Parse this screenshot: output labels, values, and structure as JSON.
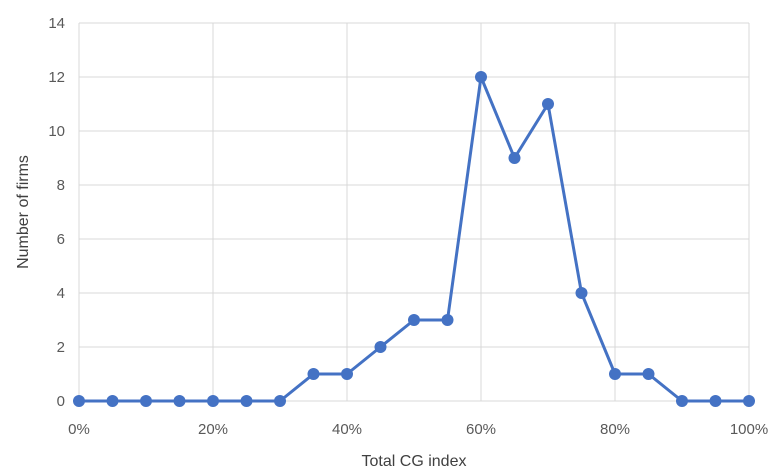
{
  "chart_data": {
    "type": "line",
    "title": "",
    "xlabel": "Total CG index",
    "ylabel": "Number of firms",
    "x": [
      0,
      5,
      10,
      15,
      20,
      25,
      30,
      35,
      40,
      45,
      50,
      55,
      60,
      65,
      70,
      75,
      80,
      85,
      90,
      95,
      100
    ],
    "series": [
      {
        "values": [
          0,
          0,
          0,
          0,
          0,
          0,
          0,
          1,
          1,
          2,
          3,
          3,
          12,
          9,
          11,
          4,
          1,
          1,
          0,
          0,
          0
        ]
      }
    ],
    "xlim": [
      0,
      100
    ],
    "ylim": [
      0,
      14
    ],
    "x_ticks": [
      0,
      20,
      40,
      60,
      80,
      100
    ],
    "x_tick_labels": [
      "0%",
      "20%",
      "40%",
      "60%",
      "80%",
      "100%"
    ],
    "y_ticks": [
      0,
      2,
      4,
      6,
      8,
      10,
      12,
      14
    ],
    "y_tick_labels": [
      "0",
      "2",
      "4",
      "6",
      "8",
      "10",
      "12",
      "14"
    ],
    "grid": true,
    "legend": "none",
    "colors": {
      "series": "#4472C4",
      "grid": "#D9D9D9",
      "text": "#595959"
    }
  }
}
